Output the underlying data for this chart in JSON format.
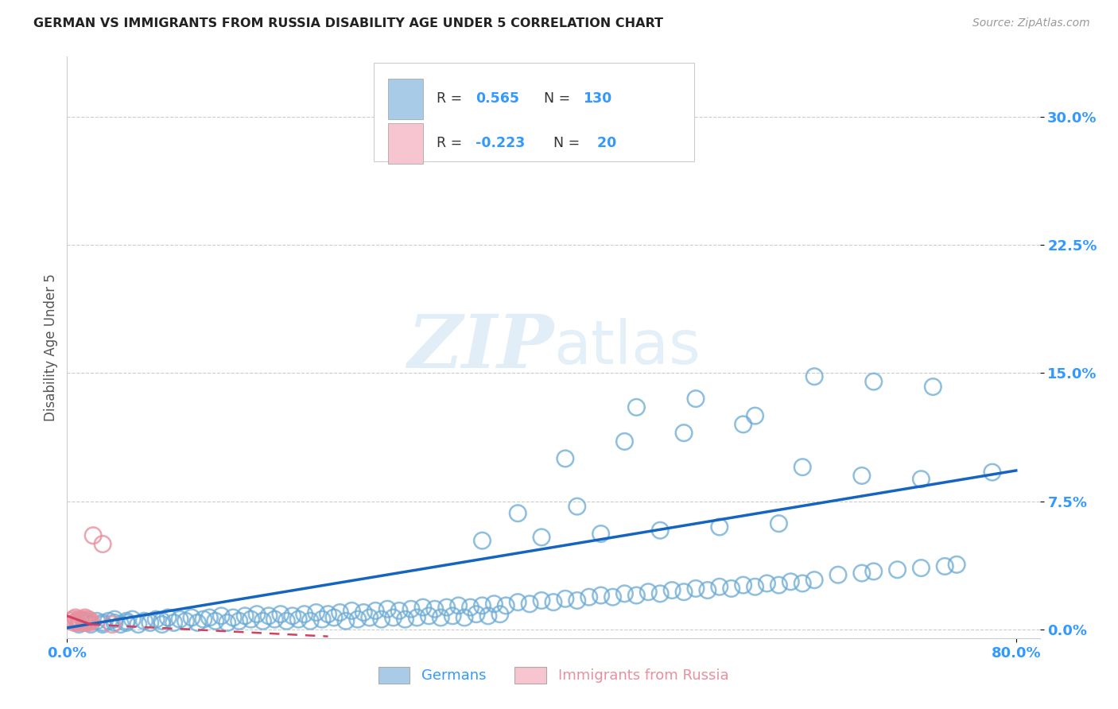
{
  "title": "GERMAN VS IMMIGRANTS FROM RUSSIA DISABILITY AGE UNDER 5 CORRELATION CHART",
  "source": "Source: ZipAtlas.com",
  "ylabel_label": "Disability Age Under 5",
  "xlim": [
    0.0,
    0.82
  ],
  "ylim": [
    -0.005,
    0.335
  ],
  "ytick_vals": [
    0.0,
    0.075,
    0.15,
    0.225,
    0.3
  ],
  "xtick_vals": [
    0.0,
    0.8
  ],
  "legend_label_blue": "Germans",
  "legend_label_pink": "Immigrants from Russia",
  "blue_color": "#a8cce8",
  "blue_edge_color": "#6aaad4",
  "blue_line_color": "#1565c0",
  "pink_color": "#f7c5d0",
  "pink_edge_color": "#e8909e",
  "pink_line_color": "#d44060",
  "background_color": "#ffffff",
  "title_color": "#333333",
  "axis_label_color": "#555555",
  "tick_label_color": "#3399ff",
  "grid_color": "#cccccc",
  "watermark_zip": "ZIP",
  "watermark_atlas": "atlas",
  "blue_x": [
    0.01,
    0.015,
    0.02,
    0.025,
    0.03,
    0.03,
    0.035,
    0.04,
    0.04,
    0.045,
    0.05,
    0.05,
    0.055,
    0.06,
    0.065,
    0.07,
    0.075,
    0.08,
    0.08,
    0.085,
    0.09,
    0.095,
    0.1,
    0.105,
    0.11,
    0.115,
    0.12,
    0.125,
    0.13,
    0.135,
    0.14,
    0.145,
    0.15,
    0.155,
    0.16,
    0.165,
    0.17,
    0.175,
    0.18,
    0.185,
    0.19,
    0.195,
    0.2,
    0.205,
    0.21,
    0.215,
    0.22,
    0.225,
    0.23,
    0.235,
    0.24,
    0.245,
    0.25,
    0.255,
    0.26,
    0.265,
    0.27,
    0.275,
    0.28,
    0.285,
    0.29,
    0.295,
    0.3,
    0.305,
    0.31,
    0.315,
    0.32,
    0.325,
    0.33,
    0.335,
    0.34,
    0.345,
    0.35,
    0.355,
    0.36,
    0.365,
    0.37,
    0.38,
    0.39,
    0.4,
    0.41,
    0.42,
    0.43,
    0.44,
    0.45,
    0.46,
    0.47,
    0.48,
    0.49,
    0.5,
    0.51,
    0.52,
    0.53,
    0.54,
    0.55,
    0.56,
    0.57,
    0.58,
    0.59,
    0.6,
    0.61,
    0.62,
    0.63,
    0.65,
    0.67,
    0.68,
    0.7,
    0.72,
    0.74,
    0.75,
    0.42,
    0.47,
    0.52,
    0.57,
    0.62,
    0.67,
    0.72,
    0.48,
    0.53,
    0.58,
    0.35,
    0.4,
    0.45,
    0.5,
    0.55,
    0.6,
    0.38,
    0.43,
    0.63,
    0.68,
    0.73,
    0.78
  ],
  "blue_y": [
    0.003,
    0.004,
    0.003,
    0.005,
    0.004,
    0.003,
    0.005,
    0.004,
    0.006,
    0.003,
    0.005,
    0.004,
    0.006,
    0.003,
    0.005,
    0.004,
    0.006,
    0.005,
    0.003,
    0.007,
    0.004,
    0.006,
    0.005,
    0.007,
    0.004,
    0.006,
    0.007,
    0.005,
    0.008,
    0.004,
    0.007,
    0.005,
    0.008,
    0.006,
    0.009,
    0.005,
    0.008,
    0.006,
    0.009,
    0.005,
    0.008,
    0.006,
    0.009,
    0.005,
    0.01,
    0.006,
    0.009,
    0.007,
    0.01,
    0.005,
    0.011,
    0.006,
    0.01,
    0.007,
    0.011,
    0.006,
    0.012,
    0.007,
    0.011,
    0.006,
    0.012,
    0.007,
    0.013,
    0.008,
    0.012,
    0.007,
    0.013,
    0.008,
    0.014,
    0.007,
    0.013,
    0.009,
    0.014,
    0.008,
    0.015,
    0.009,
    0.014,
    0.016,
    0.015,
    0.017,
    0.016,
    0.018,
    0.017,
    0.019,
    0.02,
    0.019,
    0.021,
    0.02,
    0.022,
    0.021,
    0.023,
    0.022,
    0.024,
    0.023,
    0.025,
    0.024,
    0.026,
    0.025,
    0.027,
    0.026,
    0.028,
    0.027,
    0.029,
    0.032,
    0.033,
    0.034,
    0.035,
    0.036,
    0.037,
    0.038,
    0.1,
    0.11,
    0.115,
    0.12,
    0.095,
    0.09,
    0.088,
    0.13,
    0.135,
    0.125,
    0.052,
    0.054,
    0.056,
    0.058,
    0.06,
    0.062,
    0.068,
    0.072,
    0.148,
    0.145,
    0.142,
    0.092
  ],
  "pink_x": [
    0.003,
    0.005,
    0.006,
    0.007,
    0.008,
    0.009,
    0.01,
    0.011,
    0.012,
    0.013,
    0.014,
    0.015,
    0.016,
    0.017,
    0.018,
    0.019,
    0.02,
    0.022,
    0.03,
    0.038
  ],
  "pink_y": [
    0.005,
    0.006,
    0.004,
    0.007,
    0.005,
    0.004,
    0.006,
    0.005,
    0.004,
    0.006,
    0.005,
    0.007,
    0.004,
    0.005,
    0.006,
    0.004,
    0.005,
    0.055,
    0.05,
    0.003
  ],
  "blue_trend": [
    0.0,
    0.8,
    0.001,
    0.093
  ],
  "pink_trend_solid": [
    0.0,
    0.02,
    0.008,
    0.003
  ],
  "pink_trend_dash": [
    0.02,
    0.22,
    0.003,
    -0.004
  ]
}
